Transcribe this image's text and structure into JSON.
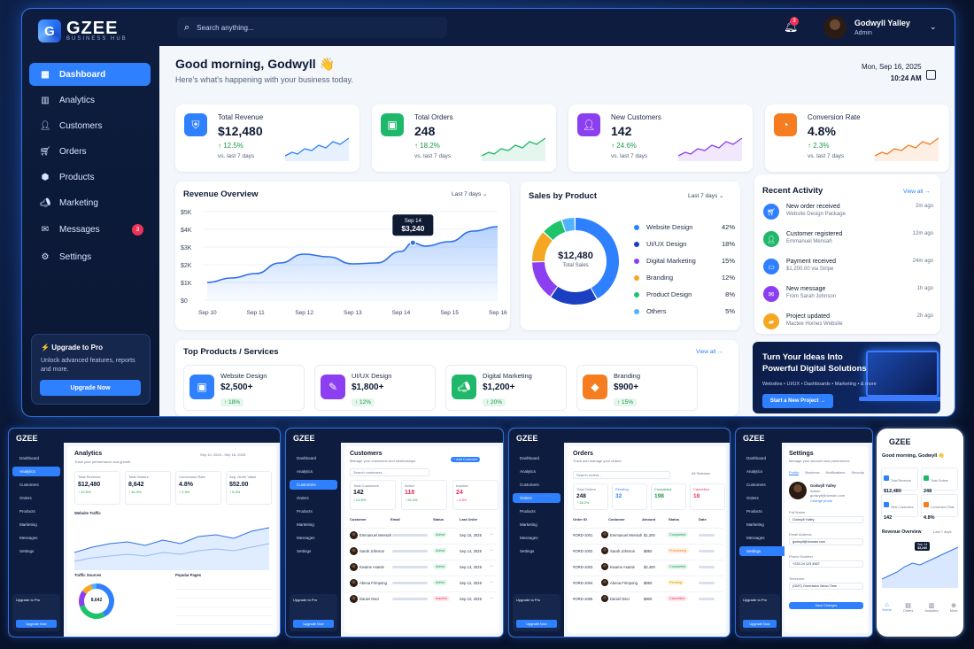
{
  "brand": {
    "name": "GZEE",
    "sub": "BUSINESS HUB",
    "mark": "G"
  },
  "sidebar": {
    "items": [
      {
        "label": "Dashboard",
        "icon": "grid-icon"
      },
      {
        "label": "Analytics",
        "icon": "bar-chart-icon"
      },
      {
        "label": "Customers",
        "icon": "user-icon"
      },
      {
        "label": "Orders",
        "icon": "cart-icon"
      },
      {
        "label": "Products",
        "icon": "box-icon"
      },
      {
        "label": "Marketing",
        "icon": "megaphone-icon"
      },
      {
        "label": "Messages",
        "icon": "message-icon",
        "badge": "3"
      },
      {
        "label": "Settings",
        "icon": "gear-icon"
      }
    ],
    "upgrade": {
      "title": "Upgrade to Pro",
      "desc": "Unlock advanced features, reports and more.",
      "button": "Upgrade Now"
    }
  },
  "topbar": {
    "search_placeholder": "Search anything...",
    "notif_count": "3",
    "user_name": "Godwyll Yalley",
    "user_role": "Admin"
  },
  "header": {
    "greeting": "Good morning, Godwyll 👋",
    "subtitle": "Here's what's happening with your business today.",
    "date": "Mon, Sep 16, 2025",
    "time": "10:24 AM"
  },
  "stats": [
    {
      "label": "Total Revenue",
      "value": "$12,480",
      "change": "↑ 12.5%",
      "vs": "vs. last 7 days",
      "color": "#2f80ff",
      "spark": "#2f80ff",
      "icon": "shield-icon"
    },
    {
      "label": "Total Orders",
      "value": "248",
      "change": "↑ 18.2%",
      "vs": "vs. last 7 days",
      "color": "#1fb86a",
      "spark": "#1fb86a",
      "icon": "bag-icon"
    },
    {
      "label": "New Customers",
      "value": "142",
      "change": "↑ 24.6%",
      "vs": "vs. last 7 days",
      "color": "#8b3ff0",
      "spark": "#8b3ff0",
      "icon": "user-icon"
    },
    {
      "label": "Conversion Rate",
      "value": "4.8%",
      "change": "↑ 2.3%",
      "vs": "vs. last 7 days",
      "color": "#f57c1f",
      "spark": "#f57c1f",
      "icon": "gauge-icon"
    }
  ],
  "revenue": {
    "title": "Revenue Overview",
    "range": "Last 7 days",
    "tooltip_date": "Sep 14",
    "tooltip_value": "$3,240"
  },
  "chart_data": {
    "type": "area",
    "title": "Revenue Overview",
    "categories": [
      "Sep 10",
      "Sep 11",
      "Sep 12",
      "Sep 13",
      "Sep 14",
      "Sep 15",
      "Sep 16"
    ],
    "y_ticks": [
      "$0",
      "$1K",
      "$2K",
      "$3K",
      "$4K",
      "$5K"
    ],
    "ylim": [
      0,
      5000
    ],
    "x": [
      0,
      0.5,
      1,
      1.5,
      2,
      2.5,
      3,
      3.5,
      4,
      4.25,
      4.5,
      5,
      5.5,
      6
    ],
    "values": [
      1000,
      1250,
      1500,
      2100,
      2600,
      2450,
      2050,
      2100,
      2750,
      3240,
      3050,
      3300,
      3900,
      4150
    ]
  },
  "sales": {
    "title": "Sales by Product",
    "range": "Last 7 days",
    "center_value": "$12,480",
    "center_label": "Total Sales",
    "items": [
      {
        "name": "Website Design",
        "pct": "42%",
        "value": 42,
        "color": "#2f80ff"
      },
      {
        "name": "UI/UX Design",
        "pct": "18%",
        "value": 18,
        "color": "#1a3fc0"
      },
      {
        "name": "Digital Marketing",
        "pct": "15%",
        "value": 15,
        "color": "#8b3ff0"
      },
      {
        "name": "Branding",
        "pct": "12%",
        "value": 12,
        "color": "#f5a623"
      },
      {
        "name": "Product Design",
        "pct": "8%",
        "value": 8,
        "color": "#1fc46a"
      },
      {
        "name": "Others",
        "pct": "5%",
        "value": 5,
        "color": "#4fb3ff"
      }
    ]
  },
  "activity": {
    "title": "Recent Activity",
    "view_all": "View all →",
    "items": [
      {
        "title": "New order received",
        "sub": "Website Design Package",
        "time": "2m ago",
        "color": "#2f80ff",
        "icon": "cart-icon"
      },
      {
        "title": "Customer registered",
        "sub": "Emmanuel Mensah",
        "time": "12m ago",
        "color": "#1fb86a",
        "icon": "user-icon"
      },
      {
        "title": "Payment received",
        "sub": "$1,200.00 via Stripe",
        "time": "24m ago",
        "color": "#2f80ff",
        "icon": "card-icon"
      },
      {
        "title": "New message",
        "sub": "From Sarah Johnson",
        "time": "1h ago",
        "color": "#8b3ff0",
        "icon": "message-icon"
      },
      {
        "title": "Project updated",
        "sub": "Mactee Homes Website",
        "time": "2h ago",
        "color": "#f5a623",
        "icon": "folder-icon"
      }
    ]
  },
  "top_products": {
    "title": "Top Products / Services",
    "view_all": "View all →",
    "items": [
      {
        "name": "Website Design",
        "price": "$2,500+",
        "change": "↑ 18%",
        "color": "#2f80ff",
        "icon": "monitor-icon"
      },
      {
        "name": "UI/UX Design",
        "price": "$1,800+",
        "change": "↑ 12%",
        "color": "#8b3ff0",
        "icon": "pen-icon"
      },
      {
        "name": "Digital Marketing",
        "price": "$1,200+",
        "change": "↑ 20%",
        "color": "#1fb86a",
        "icon": "megaphone-icon"
      },
      {
        "name": "Branding",
        "price": "$900+",
        "change": "↑ 15%",
        "color": "#f57c1f",
        "icon": "tag-icon"
      }
    ]
  },
  "promo": {
    "title": "Turn Your Ideas Into Powerful Digital Solutions",
    "sub": "Websites • UI/UX • Dashboards • Marketing • & more",
    "button": "Start a New Project →"
  },
  "mini": {
    "nav": [
      "Dashboard",
      "Analytics",
      "Customers",
      "Orders",
      "Products",
      "Marketing",
      "Messages",
      "Settings"
    ],
    "upgrade_title": "Upgrade to Pro",
    "upgrade_btn": "Upgrade Now",
    "analytics": {
      "title": "Analytics",
      "sub": "Track your performance and growth",
      "range": "Sep 10, 2025 - Sep 16, 2025",
      "stats": [
        {
          "l": "Total Revenue",
          "v": "$12,480",
          "c": "↑ 12.5%"
        },
        {
          "l": "Total Visitors",
          "v": "8,642",
          "c": "↑ 16.3%"
        },
        {
          "l": "Conversion Rate",
          "v": "4.8%",
          "c": "↑ 2.3%"
        },
        {
          "l": "Avg. Order Value",
          "v": "$52.00",
          "c": "↑ 5.2%"
        }
      ],
      "traffic": "Website Traffic",
      "sources": "Traffic Sources",
      "sources_total": "8,642",
      "pages": "Popular Pages"
    },
    "customers": {
      "title": "Customers",
      "sub": "Manage your customers and relationships",
      "add": "+ Add Customer",
      "search": "Search customers...",
      "stats": [
        {
          "l": "Total Customers",
          "v": "142",
          "c": "↑ 24.6%"
        },
        {
          "l": "Active",
          "v": "118",
          "c": "↑ 26.3%"
        },
        {
          "l": "Inactive",
          "v": "24",
          "c": "↓ 4.8%"
        }
      ],
      "cols": [
        "Customer",
        "Email",
        "Status",
        "Last Order"
      ],
      "rows": [
        [
          "Emmanuel Mensah",
          "Active",
          "Sep 15, 2025"
        ],
        [
          "Sarah Johnson",
          "Active",
          "Sep 14, 2025"
        ],
        [
          "Kwame Asante",
          "Active",
          "Sep 13, 2025"
        ],
        [
          "Abena Frimpong",
          "Active",
          "Sep 12, 2025"
        ],
        [
          "Daniel Osei",
          "Inactive",
          "Sep 10, 2025"
        ]
      ]
    },
    "orders": {
      "title": "Orders",
      "sub": "Track and manage your orders",
      "search": "Search orders...",
      "filter": "All Statuses",
      "stats": [
        {
          "l": "Total Orders",
          "v": "248",
          "c": "↑ 18.2%"
        },
        {
          "l": "Pending",
          "v": "32"
        },
        {
          "l": "Completed",
          "v": "198"
        },
        {
          "l": "Cancelled",
          "v": "18"
        }
      ],
      "cols": [
        "Order ID",
        "Customer",
        "Amount",
        "Status",
        "Date"
      ],
      "rows": [
        [
          "#ORD-1001",
          "Emmanuel Mensah",
          "$1,200",
          "Completed"
        ],
        [
          "#ORD-1002",
          "Sarah Johnson",
          "$850",
          "Processing"
        ],
        [
          "#ORD-1003",
          "Kwame Asante",
          "$2,400",
          "Completed"
        ],
        [
          "#ORD-1004",
          "Abena Frimpong",
          "$650",
          "Pending"
        ],
        [
          "#ORD-1005",
          "Daniel Osei",
          "$900",
          "Cancelled"
        ]
      ]
    },
    "settings": {
      "title": "Settings",
      "sub": "Manage your account and preferences",
      "tabs": [
        "Profile",
        "Business",
        "Notifications",
        "Security"
      ],
      "name": "Godwyll Yalley",
      "role": "Admin",
      "email": "godwyll@domain.com",
      "change": "Change photo",
      "fields": [
        {
          "l": "Full Name",
          "v": "Godwyll Yalley"
        },
        {
          "l": "Email Address",
          "v": "godwyll@domain.com"
        },
        {
          "l": "Phone Number",
          "v": "+233 24 123 4567"
        },
        {
          "l": "Timezone",
          "v": "(GMT) Greenwich Mean Time"
        }
      ],
      "save": "Save Changes"
    },
    "mobile": {
      "greeting": "Good morning, Godwyll 👋",
      "stats": [
        {
          "l": "Total Revenue",
          "v": "$12,480"
        },
        {
          "l": "Total Orders",
          "v": "248"
        },
        {
          "l": "New Customers",
          "v": "142"
        },
        {
          "l": "Conversion Rate",
          "v": "4.8%"
        }
      ],
      "rev": "Revenue Overview",
      "range": "Last 7 days",
      "tip_date": "Sep 14",
      "tip_val": "$3,240",
      "tabs": [
        "Home",
        "Orders",
        "Analytics",
        "More"
      ]
    }
  }
}
